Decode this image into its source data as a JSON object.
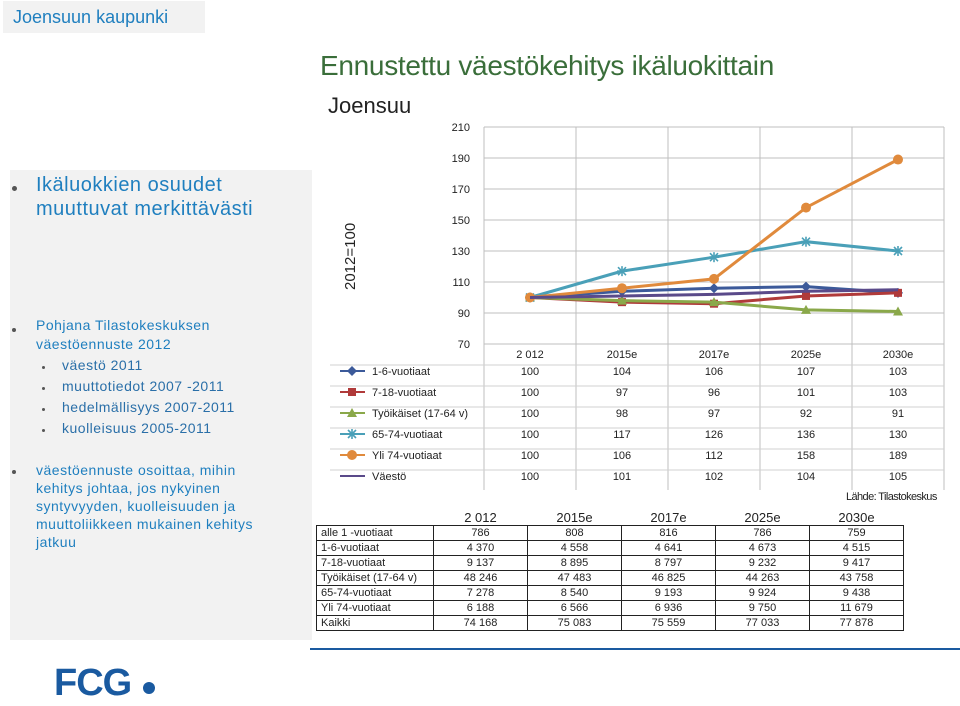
{
  "header": {
    "org": "Joensuun kaupunki"
  },
  "left_panel": {
    "heading": "Ikäluokkien osuudet muuttuvat merkittävästi",
    "heading_lines": [
      "Ikäluokkien osuudet",
      "muuttuvat merkittävästi"
    ],
    "bullet2": [
      "Pohjana Tilastokeskuksen",
      "väestöennuste 2012"
    ],
    "sub_items": [
      "väestö 2011",
      "muuttotiedot 2007 -2011",
      "hedelmällisyys 2007-2011",
      "kuolleisuus 2005-2011"
    ],
    "bullet3": [
      "väestöennuste osoittaa, mihin",
      "kehitys johtaa, jos nykyinen",
      "syntyvyyden, kuolleisuuden ja",
      "muuttoliikkeen mukainen kehitys",
      "jatkuu"
    ]
  },
  "title": "Ennustettu väestökehitys ikäluokittain",
  "subtitle": "Joensuu",
  "source": "Lähde: Tilastokeskus",
  "logo": "FCG",
  "chart_data": {
    "type": "line",
    "ylabel": "2012=100",
    "yticks": [
      70,
      90,
      110,
      130,
      150,
      170,
      190,
      210
    ],
    "ylim": [
      70,
      210
    ],
    "categories": [
      "2 012",
      "2015e",
      "2017e",
      "2025e",
      "2030e"
    ],
    "series": [
      {
        "name": "1-6-vuotiaat",
        "values": [
          100,
          104,
          106,
          107,
          103
        ],
        "color": "#3c5a9a",
        "marker": "diamond"
      },
      {
        "name": "7-18-vuotiaat",
        "values": [
          100,
          97,
          96,
          101,
          103
        ],
        "color": "#b03a3a",
        "marker": "square"
      },
      {
        "name": "Työikäiset (17-64 v)",
        "values": [
          100,
          98,
          97,
          92,
          91
        ],
        "color": "#8aa84a",
        "marker": "triangle"
      },
      {
        "name": "65-74-vuotiaat",
        "values": [
          100,
          117,
          126,
          136,
          130
        ],
        "color": "#4aa0b8",
        "marker": "star"
      },
      {
        "name": "Yli 74-vuotiaat",
        "values": [
          100,
          106,
          112,
          158,
          189
        ],
        "color": "#e08a3c",
        "marker": "circle"
      },
      {
        "name": "Väestö",
        "values": [
          100,
          101,
          102,
          104,
          105
        ],
        "color": "#5a4a8a",
        "marker": "none"
      }
    ],
    "grid": true,
    "legend": "table-below"
  },
  "abs_table": {
    "headers": [
      "2 012",
      "2015e",
      "2017e",
      "2025e",
      "2030e"
    ],
    "rows": [
      {
        "label": "alle 1 -vuotiaat",
        "values": [
          "786",
          "808",
          "816",
          "786",
          "759"
        ]
      },
      {
        "label": "1-6-vuotiaat",
        "values": [
          "4 370",
          "4 558",
          "4 641",
          "4 673",
          "4 515"
        ]
      },
      {
        "label": "7-18-vuotiaat",
        "values": [
          "9 137",
          "8 895",
          "8 797",
          "9 232",
          "9 417"
        ]
      },
      {
        "label": "Työikäiset (17-64 v)",
        "values": [
          "48 246",
          "47 483",
          "46 825",
          "44 263",
          "43 758"
        ]
      },
      {
        "label": "65-74-vuotiaat",
        "values": [
          "7 278",
          "8 540",
          "9 193",
          "9 924",
          "9 438"
        ]
      },
      {
        "label": "Yli 74-vuotiaat",
        "values": [
          "6 188",
          "6 566",
          "6 936",
          "9 750",
          "11 679"
        ]
      },
      {
        "label": "Kaikki",
        "values": [
          "74 168",
          "75 083",
          "75 559",
          "77 033",
          "77 878"
        ]
      }
    ]
  }
}
